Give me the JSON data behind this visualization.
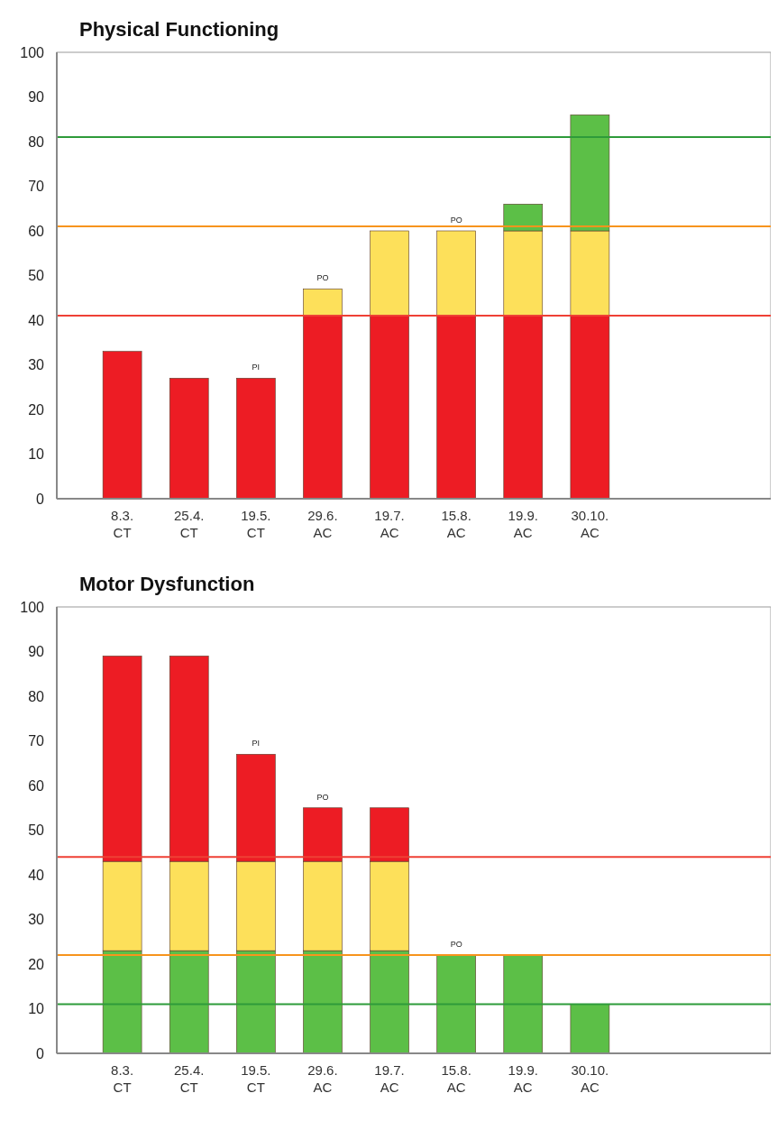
{
  "chart_data": [
    {
      "type": "bar",
      "title": "Physical Functioning",
      "categories": [
        "8.3.\nCT",
        "25.4.\nCT",
        "19.5.\nCT",
        "29.6.\nAC",
        "19.7.\nAC",
        "15.8.\nAC",
        "19.9.\nAC",
        "30.10.\nAC"
      ],
      "stacked": true,
      "series": [
        {
          "color": "#ed1c24",
          "values": [
            33,
            27,
            27,
            41,
            41,
            41,
            41,
            41
          ]
        },
        {
          "color": "#fde05a",
          "values": [
            0,
            0,
            0,
            6,
            19,
            19,
            19,
            19
          ]
        },
        {
          "color": "#5cbf47",
          "values": [
            0,
            0,
            0,
            0,
            0,
            0,
            6,
            26
          ]
        }
      ],
      "ylim": [
        0,
        100
      ],
      "yticks": [
        0,
        10,
        20,
        30,
        40,
        50,
        60,
        70,
        80,
        90,
        100
      ],
      "grid": false,
      "ref_lines": [
        {
          "axis": "y",
          "value": 81,
          "color": "#2e9b3a"
        },
        {
          "axis": "y",
          "value": 61,
          "color": "#f7941d"
        },
        {
          "axis": "y",
          "value": 41,
          "color": "#ef4035"
        }
      ],
      "annotations": [
        {
          "text": "PI",
          "x": "19.5.\nCT",
          "y": 27
        },
        {
          "text": "PO",
          "x": "29.6.\nAC",
          "y": 47
        },
        {
          "text": "PO",
          "x": "15.8.\nAC",
          "y": 60
        }
      ]
    },
    {
      "type": "bar",
      "title": "Motor Dysfunction",
      "categories": [
        "8.3.\nCT",
        "25.4.\nCT",
        "19.5.\nCT",
        "29.6.\nAC",
        "19.7.\nAC",
        "15.8.\nAC",
        "19.9.\nAC",
        "30.10.\nAC"
      ],
      "stacked": true,
      "series": [
        {
          "color": "#5cbf47",
          "values": [
            23,
            23,
            23,
            23,
            23,
            22,
            22,
            11
          ]
        },
        {
          "color": "#fde05a",
          "values": [
            20,
            20,
            20,
            20,
            20,
            0,
            0,
            0
          ]
        },
        {
          "color": "#ed1c24",
          "values": [
            46,
            46,
            24,
            12,
            12,
            0,
            0,
            0
          ]
        }
      ],
      "ylim": [
        0,
        100
      ],
      "yticks": [
        0,
        10,
        20,
        30,
        40,
        50,
        60,
        70,
        80,
        90,
        100
      ],
      "grid": false,
      "ref_lines": [
        {
          "axis": "y",
          "value": 44,
          "color": "#ef4035"
        },
        {
          "axis": "y",
          "value": 22,
          "color": "#f7941d"
        },
        {
          "axis": "y",
          "value": 11,
          "color": "#2e9b3a"
        }
      ],
      "annotations": [
        {
          "text": "PI",
          "x": "19.5.\nCT",
          "y": 67
        },
        {
          "text": "PO",
          "x": "29.6.\nAC",
          "y": 55
        },
        {
          "text": "PO",
          "x": "15.8.\nAC",
          "y": 22
        }
      ]
    }
  ]
}
